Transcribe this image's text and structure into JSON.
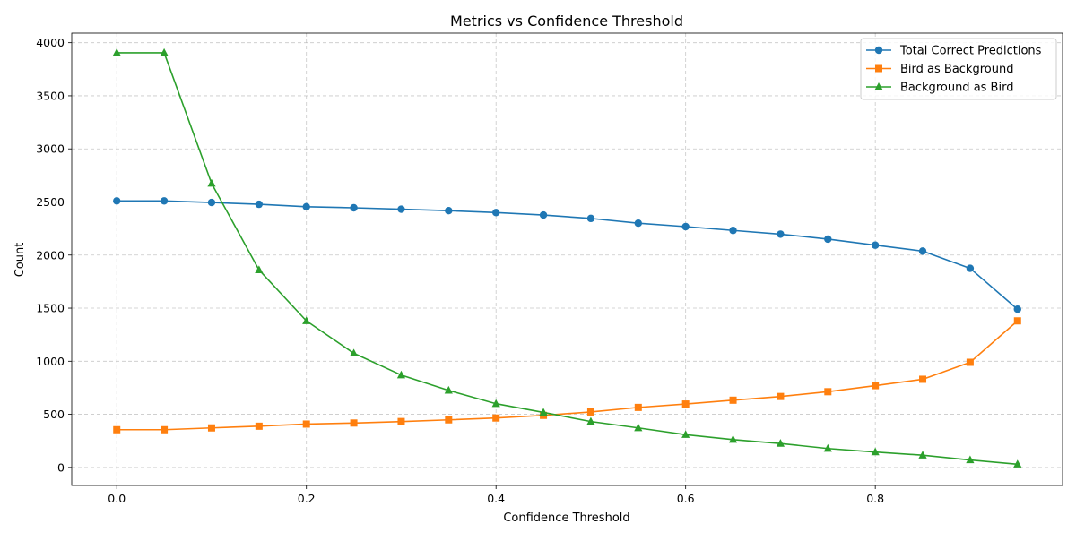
{
  "chart_data": {
    "type": "line",
    "title": "Metrics vs Confidence Threshold",
    "xlabel": "Confidence Threshold",
    "ylabel": "Count",
    "xlim": [
      -0.0475,
      0.9975
    ],
    "ylim": [
      -170,
      4090
    ],
    "x_ticks": [
      0.0,
      0.2,
      0.4,
      0.6,
      0.8
    ],
    "x_tick_labels": [
      "0.0",
      "0.2",
      "0.4",
      "0.6",
      "0.8"
    ],
    "y_ticks": [
      0,
      500,
      1000,
      1500,
      2000,
      2500,
      3000,
      3500,
      4000
    ],
    "y_tick_labels": [
      "0",
      "500",
      "1000",
      "1500",
      "2000",
      "2500",
      "3000",
      "3500",
      "4000"
    ],
    "grid": true,
    "legend_position": "top-right",
    "x": [
      0.0,
      0.05,
      0.1,
      0.15,
      0.2,
      0.25,
      0.3,
      0.35,
      0.4,
      0.45,
      0.5,
      0.55,
      0.6,
      0.65,
      0.7,
      0.75,
      0.8,
      0.85,
      0.9,
      0.95
    ],
    "series": [
      {
        "name": "Total Correct Predictions",
        "color": "#1f77b4",
        "marker": "circle",
        "values": [
          2510,
          2510,
          2495,
          2478,
          2455,
          2445,
          2432,
          2418,
          2400,
          2377,
          2345,
          2300,
          2268,
          2232,
          2197,
          2150,
          2093,
          2037,
          1875,
          1490
        ]
      },
      {
        "name": "Bird as Background",
        "color": "#ff7f0e",
        "marker": "square",
        "values": [
          355,
          355,
          372,
          388,
          408,
          418,
          432,
          448,
          465,
          490,
          522,
          565,
          597,
          633,
          668,
          713,
          770,
          830,
          990,
          1380
        ]
      },
      {
        "name": "Background as Bird",
        "color": "#2ca02c",
        "marker": "triangle",
        "values": [
          3905,
          3905,
          2675,
          1860,
          1380,
          1075,
          870,
          725,
          600,
          518,
          432,
          372,
          308,
          262,
          225,
          178,
          145,
          115,
          70,
          30
        ]
      }
    ]
  }
}
